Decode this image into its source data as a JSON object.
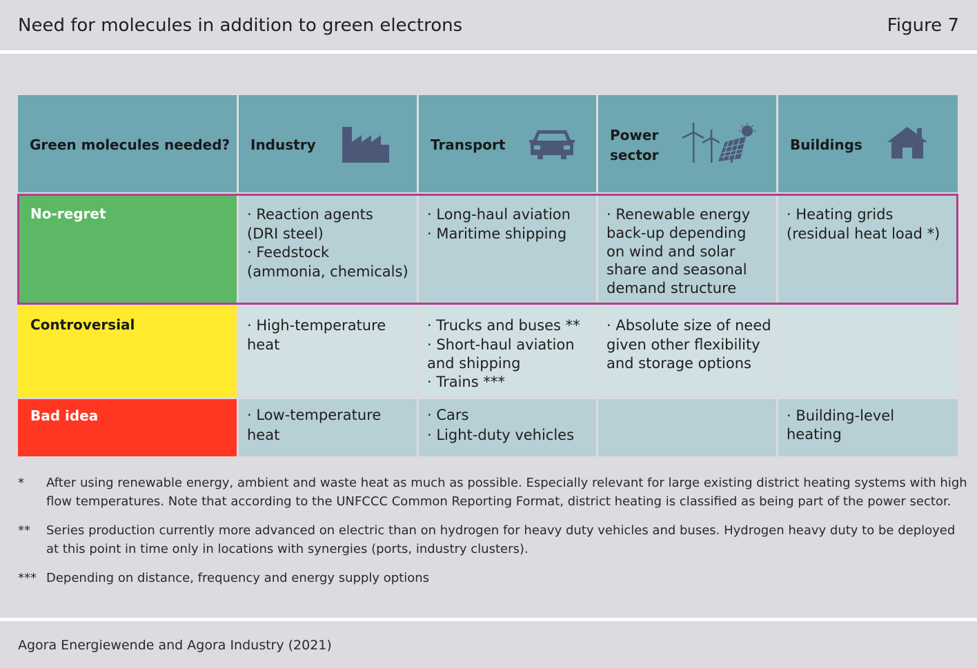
{
  "header": {
    "title": "Need for molecules in addition to green electrons",
    "figure": "Figure 7"
  },
  "table": {
    "corner": "Green molecules needed?",
    "columns": [
      {
        "label": "Industry",
        "icon": "factory-icon"
      },
      {
        "label": "Transport",
        "icon": "car-icon"
      },
      {
        "label": "Power",
        "label2": "sector",
        "icon": "wind-solar-icon"
      },
      {
        "label": "Buildings",
        "icon": "house-icon"
      }
    ],
    "rows": [
      {
        "label": "No-regret",
        "color": "#5cb865",
        "cells": [
          [
            "· Reaction agents",
            "(DRI steel)",
            "· Feedstock",
            "(ammonia, chemicals)"
          ],
          [
            "· Long-haul aviation",
            "· Maritime shipping"
          ],
          [
            "· Renewable energy",
            "back-up depending",
            "on wind and solar",
            "share and seasonal",
            "demand structure"
          ],
          [
            "· Heating grids",
            "(residual heat load *)"
          ]
        ]
      },
      {
        "label": "Controversial",
        "color": "#ffea2e",
        "cells": [
          [
            "· High-temperature",
            "heat"
          ],
          [
            "· Trucks and buses **",
            "· Short-haul aviation",
            "and shipping",
            "· Trains ***"
          ],
          [
            "· Absolute size of need",
            "given other flexibility",
            "and storage options"
          ],
          []
        ]
      },
      {
        "label": "Bad idea",
        "color": "#ff3621",
        "cells": [
          [
            "· Low-temperature",
            "heat"
          ],
          [
            "· Cars",
            "· Light-duty vehicles"
          ],
          [],
          [
            "· Building-level",
            "heating"
          ]
        ]
      }
    ]
  },
  "notes": [
    {
      "mark": "*",
      "text": "After using renewable energy, ambient and waste heat as much as possible. Especially relevant for large existing district heating systems with high flow temperatures. Note that according to the UNFCCC Common Reporting Format, district heating is classified as being part of the power sector."
    },
    {
      "mark": "**",
      "text": "Series production currently more advanced on electric than on hydrogen for heavy duty vehicles and buses. Hydrogen heavy duty to be deployed at this point in time only in locations with synergies (ports, industry clusters)."
    },
    {
      "mark": "***",
      "text": "Depending on distance, frequency and energy supply options"
    }
  ],
  "source": "Agora Energiewende and Agora Industry (2021)",
  "colors": {
    "header_bg": "#6ea6b2",
    "cell_light": "#b7d0d5",
    "cell_lighter": "#d1e0e3",
    "highlight_border": "#b33c8e",
    "icon": "#4c5878"
  }
}
